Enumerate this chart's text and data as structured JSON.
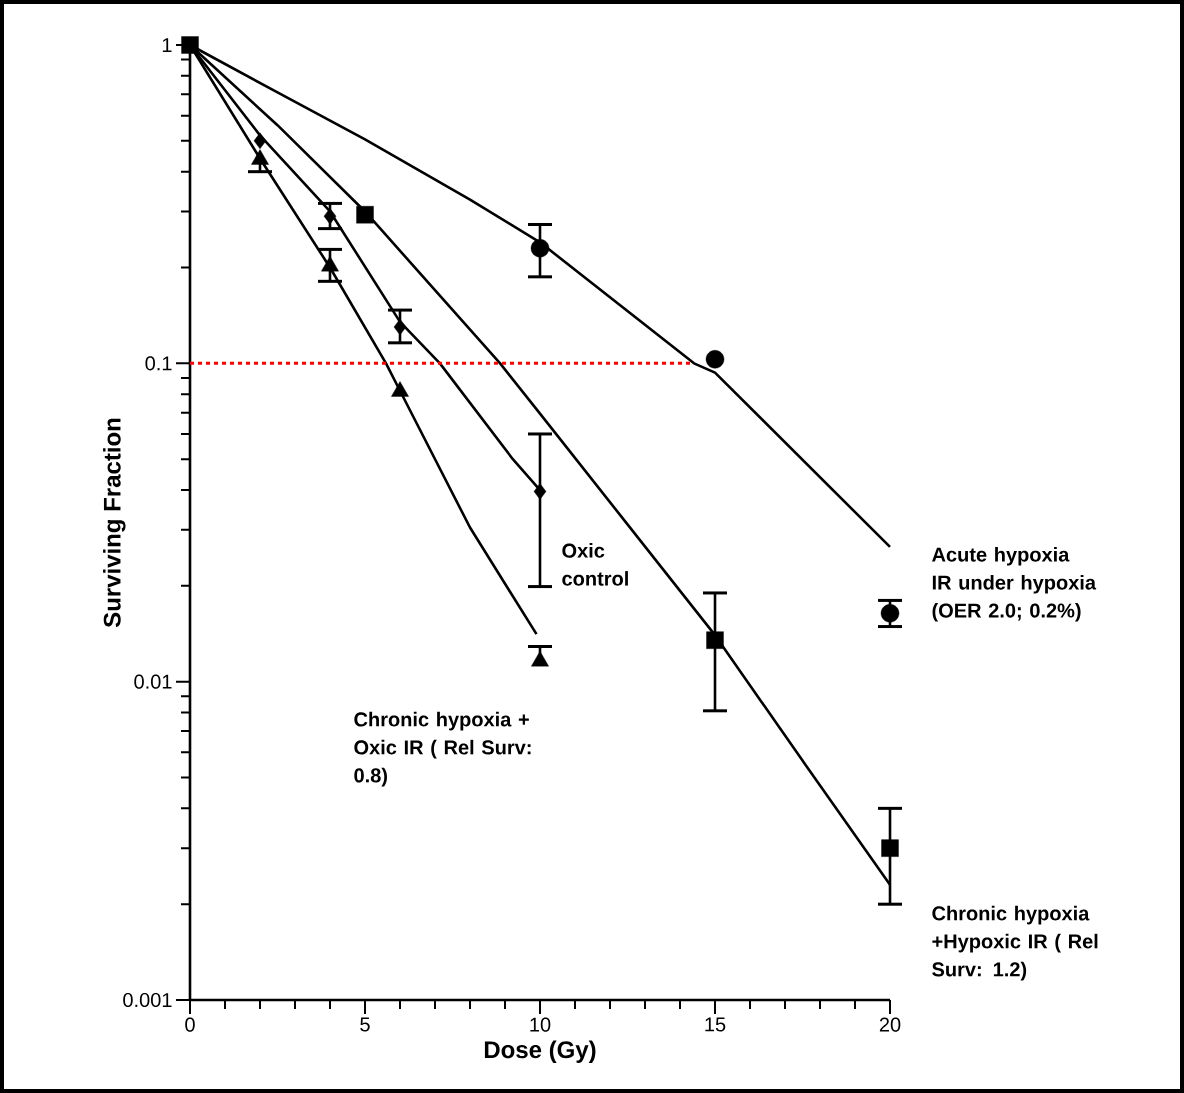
{
  "chart_data": {
    "type": "scatter",
    "xlabel": "Dose (Gy)",
    "ylabel": "Surviving Fraction",
    "log": "y",
    "xlim": [
      0,
      20
    ],
    "ylim": [
      0.001,
      1
    ],
    "xticks": [
      0,
      5,
      10,
      15,
      20
    ],
    "yticks": [
      0.001,
      0.01,
      0.1,
      1
    ],
    "series": [
      {
        "name": "Acute hypoxia IR under hypoxia (OER 2.0; 0.2%)",
        "marker": "circle",
        "color": "#000000",
        "x": [
          10,
          15,
          20
        ],
        "values": [
          0.23,
          0.103,
          0.0164
        ],
        "errors": [
          [
            0.187,
            0.273
          ],
          null,
          [
            0.0149,
            0.018
          ]
        ]
      },
      {
        "name": "Chronic hypoxia +Hypoxic IR ( Rel Surv: 1.2)",
        "marker": "square",
        "color": "#000000",
        "x": [
          0,
          5,
          15,
          20
        ],
        "values": [
          1,
          0.293,
          0.0135,
          0.003
        ],
        "errors": [
          null,
          null,
          [
            0.0081,
            0.019
          ],
          [
            0.002,
            0.004
          ]
        ]
      },
      {
        "name": "Oxic control",
        "marker": "diamond",
        "color": "#000000",
        "x": [
          2,
          4,
          6,
          10
        ],
        "values": [
          0.5,
          0.29,
          0.13,
          0.0396
        ],
        "errors": [
          null,
          [
            0.265,
            0.318
          ],
          [
            0.116,
            0.147
          ],
          [
            0.0199,
            0.06
          ]
        ]
      },
      {
        "name": "Chronic hypoxia + Oxic IR ( Rel Surv: 0.8)",
        "marker": "triangle",
        "color": "#000000",
        "x": [
          2,
          4,
          6,
          10
        ],
        "values": [
          0.437,
          0.202,
          0.0816,
          0.0116
        ],
        "errors": [
          [
            0.4,
            0.437
          ],
          [
            0.181,
            0.228
          ],
          null,
          [
            0.0116,
            0.0129
          ]
        ]
      },
      {
        "type": "line",
        "color": "#000000",
        "x": [
          0,
          2.5,
          5,
          8,
          10,
          14.4,
          15,
          20
        ],
        "values": [
          1,
          0.71,
          0.505,
          0.327,
          0.24,
          0.1,
          0.0935,
          0.0265
        ]
      },
      {
        "type": "line",
        "color": "#000000",
        "x": [
          0,
          2.5,
          5,
          8.86,
          10,
          12.5,
          15,
          17.5,
          20
        ],
        "values": [
          1,
          0.56,
          0.3,
          0.1,
          0.0695,
          0.0312,
          0.014,
          0.00565,
          0.0023
        ]
      },
      {
        "type": "line",
        "color": "#000000",
        "x": [
          0,
          2,
          4,
          6,
          7.14,
          9.23,
          10
        ],
        "values": [
          1,
          0.52,
          0.3,
          0.135,
          0.1,
          0.0499,
          0.04
        ]
      },
      {
        "type": "line",
        "color": "#000000",
        "x": [
          0,
          2,
          4,
          5.6,
          6,
          8,
          9.9
        ],
        "values": [
          1,
          0.44,
          0.2,
          0.1,
          0.082,
          0.0305,
          0.0141
        ]
      },
      {
        "type": "line",
        "color": "#ff0000",
        "line_style": "dotted",
        "x": [
          0,
          14.4
        ],
        "values": [
          0.1,
          0.1
        ]
      }
    ]
  }
}
